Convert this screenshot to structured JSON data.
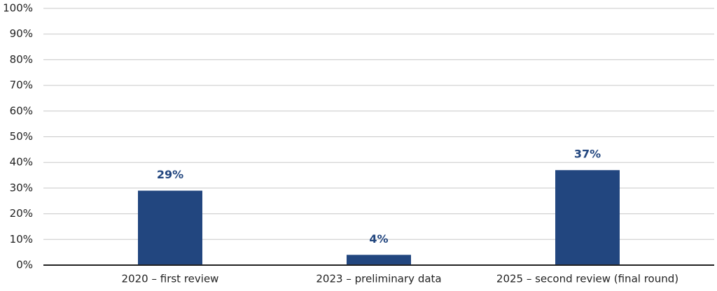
{
  "chart_data": {
    "type": "bar",
    "categories": [
      "2020 – first review",
      "2023 – preliminary data",
      "2025 – second review (final round)"
    ],
    "values": [
      29,
      4,
      37
    ],
    "value_labels": [
      "29%",
      "4%",
      "37%"
    ],
    "color": "#22467f",
    "ylim": [
      0,
      100
    ],
    "yticks": [
      {
        "value": 0,
        "label": "0%"
      },
      {
        "value": 10,
        "label": "10%"
      },
      {
        "value": 20,
        "label": "20%"
      },
      {
        "value": 30,
        "label": "30%"
      },
      {
        "value": 40,
        "label": "40%"
      },
      {
        "value": 50,
        "label": "50%"
      },
      {
        "value": 60,
        "label": "60%"
      },
      {
        "value": 70,
        "label": "70%"
      },
      {
        "value": 80,
        "label": "80%"
      },
      {
        "value": 90,
        "label": "90%"
      },
      {
        "value": 100,
        "label": "100%"
      }
    ],
    "grid": true
  }
}
